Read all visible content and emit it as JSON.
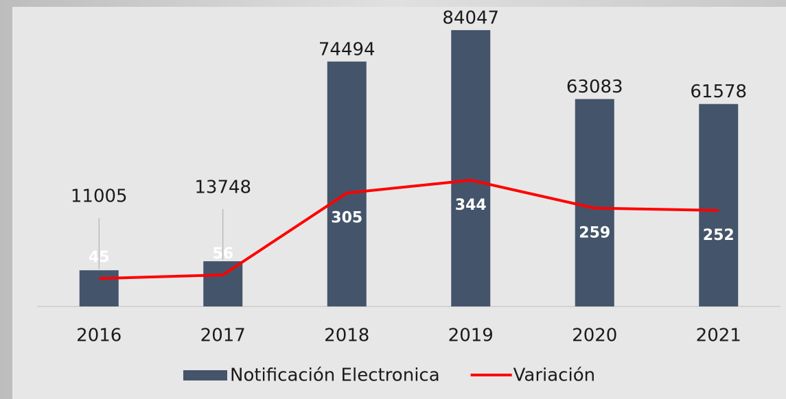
{
  "chart_data": {
    "type": "bar",
    "categories": [
      "2016",
      "2017",
      "2018",
      "2019",
      "2020",
      "2021"
    ],
    "series": [
      {
        "name": "Notificación Electronica",
        "type": "bar",
        "color": "#44546a",
        "values": [
          11005,
          13748,
          74494,
          84047,
          63083,
          61578
        ]
      },
      {
        "name": "Variación",
        "type": "line",
        "axis": "y2",
        "color": "#ff0000",
        "values": [
          45,
          56,
          305,
          344,
          259,
          252
        ]
      }
    ],
    "ylim": [
      0,
      90000
    ],
    "y2lim": [
      -40,
      860
    ],
    "legend": "bottom"
  }
}
